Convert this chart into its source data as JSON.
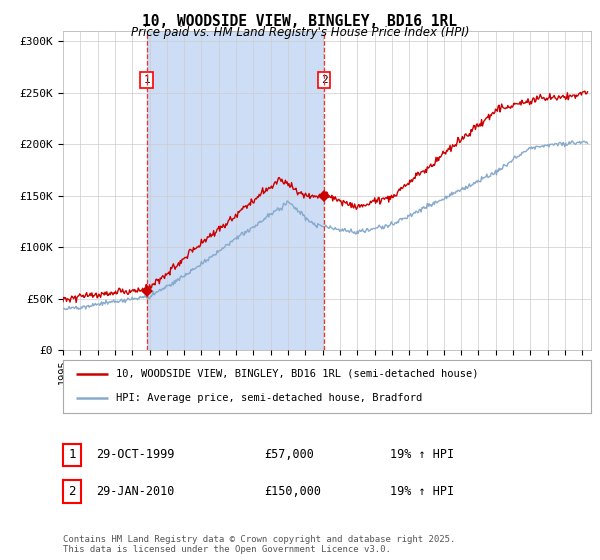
{
  "title": "10, WOODSIDE VIEW, BINGLEY, BD16 1RL",
  "subtitle": "Price paid vs. HM Land Registry's House Price Index (HPI)",
  "ylabel_ticks": [
    "£0",
    "£50K",
    "£100K",
    "£150K",
    "£200K",
    "£250K",
    "£300K"
  ],
  "ytick_vals": [
    0,
    50000,
    100000,
    150000,
    200000,
    250000,
    300000
  ],
  "ylim": [
    0,
    310000
  ],
  "xlim_start": 1995.0,
  "xlim_end": 2025.5,
  "xtick_years": [
    1995,
    1996,
    1997,
    1998,
    1999,
    2000,
    2001,
    2002,
    2003,
    2004,
    2005,
    2006,
    2007,
    2008,
    2009,
    2010,
    2011,
    2012,
    2013,
    2014,
    2015,
    2016,
    2017,
    2018,
    2019,
    2020,
    2021,
    2022,
    2023,
    2024,
    2025
  ],
  "sale1_x": 1999.83,
  "sale1_y": 57000,
  "sale2_x": 2010.08,
  "sale2_y": 150000,
  "vline1_x": 1999.83,
  "vline2_x": 2010.08,
  "legend_line1": "10, WOODSIDE VIEW, BINGLEY, BD16 1RL (semi-detached house)",
  "legend_line2": "HPI: Average price, semi-detached house, Bradford",
  "table_rows": [
    [
      "1",
      "29-OCT-1999",
      "£57,000",
      "19% ↑ HPI"
    ],
    [
      "2",
      "29-JAN-2010",
      "£150,000",
      "19% ↑ HPI"
    ]
  ],
  "footer": "Contains HM Land Registry data © Crown copyright and database right 2025.\nThis data is licensed under the Open Government Licence v3.0.",
  "line_color_red": "#cc0000",
  "line_color_blue": "#88aacc",
  "shade_color": "#ccddf5",
  "bg_color": "#ffffff",
  "grid_color": "#cccccc",
  "vline_color": "#ee3333"
}
